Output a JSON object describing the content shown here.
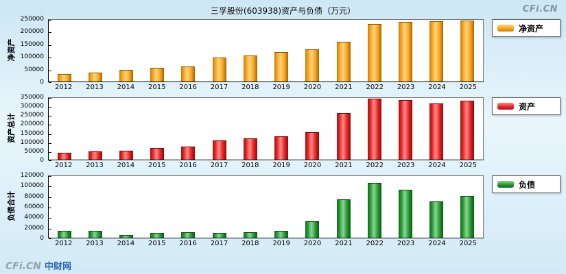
{
  "page": {
    "title": "三孚股份(603938)资产与负债（万元）",
    "watermark": "CFi.CN",
    "logo_text": "CFi.CN",
    "logo_site": "中财网"
  },
  "chart_data": [
    {
      "type": "bar",
      "ylabel": "净资产",
      "legend": "净资产",
      "color": "#F7A21C",
      "categories": [
        "2012",
        "2013",
        "2014",
        "2015",
        "2016",
        "2017",
        "2018",
        "2019",
        "2020",
        "2021",
        "2022",
        "2023",
        "2024",
        "2025"
      ],
      "values": [
        28000,
        33000,
        44000,
        53000,
        58000,
        94000,
        103000,
        117000,
        128000,
        158000,
        230000,
        239000,
        242000,
        244000
      ],
      "ylim": [
        0,
        250000
      ],
      "yticks": [
        0,
        50000,
        100000,
        150000,
        200000,
        250000
      ],
      "grid": false,
      "legend_position": "right"
    },
    {
      "type": "bar",
      "ylabel": "资产总计",
      "legend": "资产",
      "color": "#E32222",
      "categories": [
        "2012",
        "2013",
        "2014",
        "2015",
        "2016",
        "2017",
        "2018",
        "2019",
        "2020",
        "2021",
        "2022",
        "2023",
        "2024",
        "2025"
      ],
      "values": [
        38000,
        42000,
        46000,
        62000,
        70000,
        105000,
        118000,
        130000,
        152000,
        262000,
        342000,
        335000,
        316000,
        331000
      ],
      "ylim": [
        0,
        350000
      ],
      "yticks": [
        0,
        50000,
        100000,
        150000,
        200000,
        250000,
        300000,
        350000
      ],
      "grid": false,
      "legend_position": "right"
    },
    {
      "type": "bar",
      "ylabel": "负债合计",
      "legend": "负债",
      "color": "#24962F",
      "categories": [
        "2012",
        "2013",
        "2014",
        "2015",
        "2016",
        "2017",
        "2018",
        "2019",
        "2020",
        "2021",
        "2022",
        "2023",
        "2024",
        "2025"
      ],
      "values": [
        13000,
        13000,
        5000,
        9000,
        10000,
        8000,
        10000,
        13000,
        31000,
        73000,
        105000,
        92000,
        69000,
        80000
      ],
      "ylim": [
        0,
        120000
      ],
      "yticks": [
        0,
        20000,
        40000,
        60000,
        80000,
        100000,
        120000
      ],
      "grid": false,
      "legend_position": "right"
    }
  ]
}
